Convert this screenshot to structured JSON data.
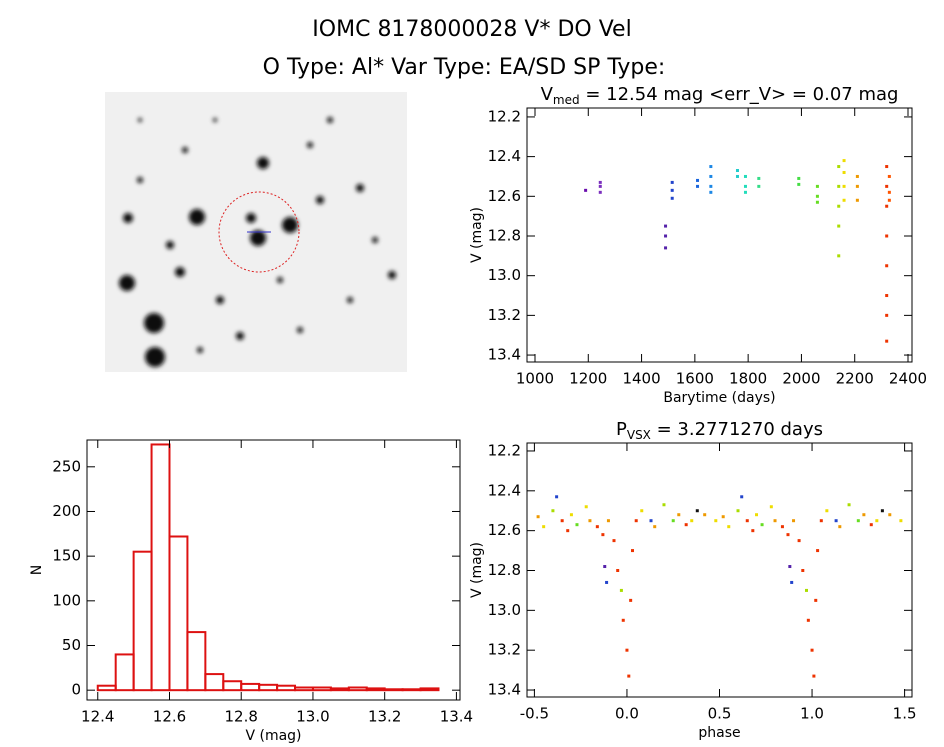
{
  "header": {
    "line1": "IOMC 8178000028   V* DO Vel",
    "line2": "O Type: Al*  Var Type: EA/SD  SP Type:"
  },
  "chart_data": [
    {
      "type": "scatter",
      "title": "V",
      "title_sub": "med",
      "title_rest": " = 12.54 mag <err_V> = 0.07 mag",
      "xlabel": "Barytime (days)",
      "ylabel": "V (mag)",
      "xlim": [
        970,
        2415
      ],
      "xticks": [
        1000,
        1200,
        1400,
        1600,
        1800,
        2000,
        2200,
        2400
      ],
      "ylim": [
        13.435,
        12.155
      ],
      "yticks": [
        12.2,
        12.4,
        12.6,
        12.8,
        {
          "value": 13,
          "label": "13.0"
        },
        13.2,
        13.4
      ],
      "x": [
        1190,
        1245,
        1245,
        1245,
        1490,
        1490,
        1490,
        1515,
        1515,
        1515,
        1610,
        1610,
        1660,
        1660,
        1660,
        1660,
        1760,
        1760,
        1790,
        1790,
        1790,
        1840,
        1840,
        1990,
        1990,
        2060,
        2060,
        2060,
        2140,
        2140,
        2140,
        2140,
        2140,
        2160,
        2160,
        2160,
        2160,
        2210,
        2210,
        2210,
        2320,
        2320,
        2320,
        2320,
        2320,
        2320,
        2320,
        2320,
        2330,
        2330,
        2330
      ],
      "values": [
        12.57,
        12.53,
        12.58,
        12.55,
        12.75,
        12.8,
        12.86,
        12.53,
        12.57,
        12.61,
        12.52,
        12.55,
        12.45,
        12.5,
        12.55,
        12.58,
        12.47,
        12.5,
        12.5,
        12.55,
        12.58,
        12.51,
        12.55,
        12.51,
        12.54,
        12.55,
        12.6,
        12.63,
        12.45,
        12.55,
        12.65,
        12.75,
        12.9,
        12.42,
        12.48,
        12.55,
        12.62,
        12.5,
        12.55,
        12.62,
        12.45,
        12.55,
        12.65,
        12.8,
        12.95,
        13.1,
        13.2,
        13.33,
        12.5,
        12.58,
        12.62
      ],
      "colors": [
        "#6a0dad",
        "#7b2fbe",
        "#7b2fbe",
        "#7b2fbe",
        "#5522aa",
        "#5522aa",
        "#5522aa",
        "#2244cc",
        "#2244cc",
        "#2244cc",
        "#1a66dd",
        "#1a66dd",
        "#1e88e5",
        "#1e88e5",
        "#1e88e5",
        "#1e88e5",
        "#22cccc",
        "#22cccc",
        "#22ddbb",
        "#22ddbb",
        "#22ddbb",
        "#33dd88",
        "#33dd88",
        "#44dd44",
        "#44dd44",
        "#66dd22",
        "#66dd22",
        "#66dd22",
        "#aadd00",
        "#aadd00",
        "#aadd00",
        "#aadd00",
        "#aadd00",
        "#eedd00",
        "#eedd00",
        "#eedd00",
        "#eedd00",
        "#ee9900",
        "#ee9900",
        "#ee9900",
        "#ee3300",
        "#ee3300",
        "#ee3300",
        "#ee3300",
        "#ee3300",
        "#ee3300",
        "#ee3300",
        "#ee3300",
        "#ff5500",
        "#ff5500",
        "#ff5500"
      ]
    },
    {
      "type": "histogram",
      "xlabel": "V (mag)",
      "ylabel": "N",
      "color": "#dd1111",
      "xlim": [
        12.37,
        13.41
      ],
      "xticks": [
        12.4,
        12.6,
        12.8,
        {
          "value": 13,
          "label": "13.0"
        },
        13.2,
        13.4
      ],
      "ylim": [
        -11,
        280
      ],
      "yticks": [
        0,
        50,
        100,
        150,
        200,
        250
      ],
      "bins": [
        12.4,
        12.45,
        12.5,
        12.55,
        12.6,
        12.65,
        12.7,
        12.75,
        12.8,
        12.85,
        12.9,
        12.95,
        13.0,
        13.05,
        13.1,
        13.15,
        13.2,
        13.25,
        13.3,
        13.35
      ],
      "values": [
        5,
        40,
        155,
        275,
        172,
        65,
        18,
        10,
        7,
        6,
        5,
        3,
        3,
        2,
        3,
        2,
        1,
        1,
        2
      ]
    },
    {
      "type": "scatter",
      "title": "P",
      "title_sub": "VSX",
      "title_rest": " = 3.2771270 days",
      "xlabel": "phase",
      "ylabel": "V (mag)",
      "xlim": [
        -0.54,
        1.54
      ],
      "xticks": [
        -0.5,
        {
          "value": 0,
          "label": "0.0"
        },
        0.5,
        {
          "value": 1,
          "label": "1.0"
        },
        1.5
      ],
      "ylim": [
        13.435,
        12.16
      ],
      "yticks": [
        12.2,
        12.4,
        12.6,
        12.8,
        {
          "value": 13,
          "label": "13.0"
        },
        13.2,
        13.4
      ],
      "x": [
        -0.48,
        -0.45,
        -0.4,
        -0.38,
        -0.35,
        -0.32,
        -0.3,
        -0.27,
        -0.22,
        -0.2,
        -0.16,
        -0.13,
        -0.12,
        -0.11,
        -0.1,
        -0.07,
        -0.05,
        -0.03,
        -0.02,
        0.0,
        0.01,
        0.02,
        0.03,
        0.05,
        0.08,
        0.13,
        0.15,
        0.2,
        0.25,
        0.28,
        0.32,
        0.35,
        0.38,
        0.42,
        0.48,
        0.52,
        0.55,
        0.6,
        0.62,
        0.65,
        0.68,
        0.7,
        0.73,
        0.78,
        0.8,
        0.84,
        0.87,
        0.88,
        0.89,
        0.9,
        0.93,
        0.95,
        0.97,
        0.98,
        1.0,
        1.01,
        1.02,
        1.03,
        1.05,
        1.08,
        1.13,
        1.15,
        1.2,
        1.25,
        1.28,
        1.32,
        1.35,
        1.38,
        1.42,
        1.48
      ],
      "values": [
        12.53,
        12.58,
        12.5,
        12.43,
        12.55,
        12.6,
        12.52,
        12.57,
        12.48,
        12.55,
        12.58,
        12.62,
        12.78,
        12.86,
        12.55,
        12.65,
        12.8,
        12.9,
        13.05,
        13.2,
        13.33,
        12.95,
        12.7,
        12.55,
        12.5,
        12.55,
        12.58,
        12.47,
        12.55,
        12.52,
        12.57,
        12.55,
        12.5,
        12.52,
        12.55,
        12.53,
        12.58,
        12.5,
        12.43,
        12.55,
        12.6,
        12.52,
        12.57,
        12.48,
        12.55,
        12.58,
        12.62,
        12.78,
        12.86,
        12.55,
        12.65,
        12.8,
        12.9,
        13.05,
        13.2,
        13.33,
        12.95,
        12.7,
        12.55,
        12.5,
        12.55,
        12.58,
        12.47,
        12.55,
        12.52,
        12.57,
        12.55,
        12.5,
        12.52,
        12.55
      ],
      "colors": [
        "#ee9900",
        "#eedd00",
        "#aadd00",
        "#2244cc",
        "#ee3300",
        "#ee3300",
        "#eedd00",
        "#66dd22",
        "#eedd00",
        "#ee9900",
        "#ee3300",
        "#ee3300",
        "#5522aa",
        "#2244cc",
        "#ee9900",
        "#ee3300",
        "#ee3300",
        "#aadd00",
        "#ee3300",
        "#ee3300",
        "#ee3300",
        "#ee3300",
        "#ee3300",
        "#ee3300",
        "#eedd00",
        "#2244cc",
        "#ee9900",
        "#aadd00",
        "#66dd22",
        "#ee9900",
        "#ee3300",
        "#eedd00",
        "#111111",
        "#ee9900",
        "#eedd00",
        "#ee9900",
        "#eedd00",
        "#aadd00",
        "#2244cc",
        "#ee3300",
        "#ee3300",
        "#eedd00",
        "#66dd22",
        "#eedd00",
        "#ee9900",
        "#ee3300",
        "#ee3300",
        "#5522aa",
        "#2244cc",
        "#ee9900",
        "#ee3300",
        "#ee3300",
        "#aadd00",
        "#ee3300",
        "#ee3300",
        "#ee3300",
        "#ee3300",
        "#ee3300",
        "#ee3300",
        "#eedd00",
        "#2244cc",
        "#ee9900",
        "#aadd00",
        "#66dd22",
        "#ee9900",
        "#ee3300",
        "#eedd00",
        "#111111",
        "#ee9900",
        "#eedd00"
      ]
    }
  ]
}
